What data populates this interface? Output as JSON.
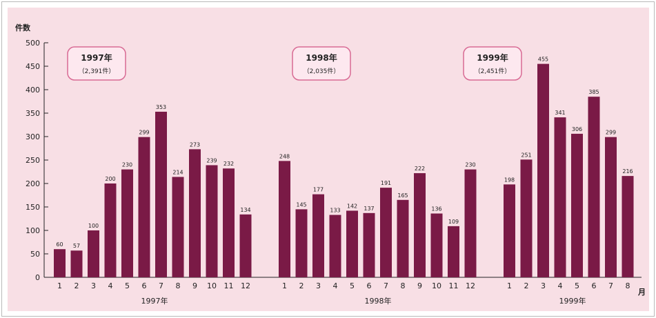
{
  "chart_data": {
    "type": "bar",
    "ylabel": "件数",
    "xunit": "月",
    "ylim": [
      0,
      500
    ],
    "yticks": [
      0,
      50,
      100,
      150,
      200,
      250,
      300,
      350,
      400,
      450,
      500
    ],
    "bar_color": "#7a1a46",
    "groups": [
      {
        "year": "1997年",
        "box_title": "1997年",
        "box_total": "（2,391件）",
        "categories": [
          "1",
          "2",
          "3",
          "4",
          "5",
          "6",
          "7",
          "8",
          "9",
          "10",
          "11",
          "12"
        ],
        "values": [
          60,
          57,
          100,
          200,
          230,
          299,
          353,
          214,
          273,
          239,
          232,
          134
        ]
      },
      {
        "year": "1998年",
        "box_title": "1998年",
        "box_total": "（2,035件）",
        "categories": [
          "1",
          "2",
          "3",
          "4",
          "5",
          "6",
          "7",
          "8",
          "9",
          "10",
          "11",
          "12"
        ],
        "values": [
          248,
          145,
          177,
          133,
          142,
          137,
          191,
          165,
          222,
          136,
          109,
          230
        ]
      },
      {
        "year": "1999年",
        "box_title": "1999年",
        "box_total": "（2,451件）",
        "categories": [
          "1",
          "2",
          "3",
          "4",
          "5",
          "6",
          "7",
          "8"
        ],
        "values": [
          198,
          251,
          455,
          341,
          306,
          385,
          299,
          216
        ]
      }
    ]
  }
}
